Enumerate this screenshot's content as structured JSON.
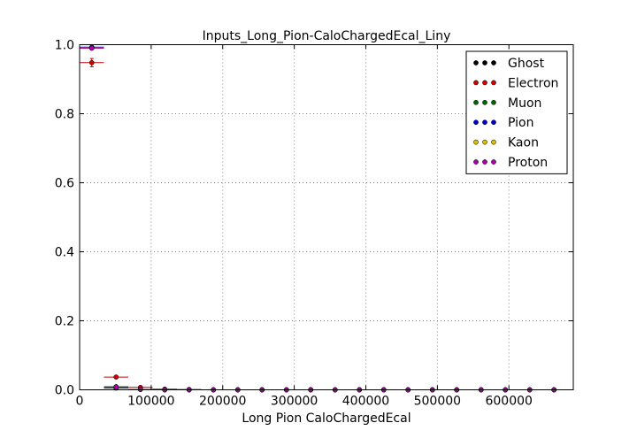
{
  "chart_data": {
    "type": "scatter",
    "title": "Inputs_Long_Pion-CaloChargedEcal_Liny",
    "xlabel": "Long Pion CaloChargedEcal",
    "ylabel": "",
    "xlim": [
      0,
      690000
    ],
    "ylim": [
      0.0,
      1.0
    ],
    "xticks": [
      0,
      100000,
      200000,
      300000,
      400000,
      500000,
      600000
    ],
    "xtick_labels": [
      "0",
      "100000",
      "200000",
      "300000",
      "400000",
      "500000",
      "600000"
    ],
    "yticks": [
      0.0,
      0.2,
      0.4,
      0.6,
      0.8,
      1.0
    ],
    "ytick_labels": [
      "0.0",
      "0.2",
      "0.4",
      "0.6",
      "0.8",
      "1.0"
    ],
    "grid": true,
    "legend_position": "top-right",
    "bin_half_width": 17000,
    "x": [
      17000,
      51000,
      85000,
      119000,
      153000,
      187000,
      221000,
      255000,
      289000,
      323000,
      357000,
      391000,
      425000,
      459000,
      493000,
      527000,
      561000,
      595000,
      629000,
      663000
    ],
    "series": [
      {
        "name": "Ghost",
        "color": "#000000",
        "values": [
          0.992,
          0.005,
          0.001,
          0,
          0,
          0,
          0,
          0,
          0,
          0,
          0,
          0,
          0,
          0,
          0,
          0,
          0,
          0,
          0,
          0
        ],
        "errors": [
          0.003,
          0,
          0,
          0,
          0,
          0,
          0,
          0,
          0,
          0,
          0,
          0,
          0,
          0,
          0,
          0,
          0,
          0,
          0,
          0
        ]
      },
      {
        "name": "Electron",
        "color": "#cc0000",
        "values": [
          0.948,
          0.037,
          0.007,
          0.002,
          0.001,
          0,
          0,
          0,
          0,
          0,
          0,
          0,
          0,
          0,
          0,
          0,
          0,
          0,
          0,
          0
        ],
        "errors": [
          0.012,
          0.004,
          0.002,
          0.001,
          0,
          0,
          0,
          0,
          0,
          0,
          0,
          0,
          0,
          0,
          0,
          0,
          0,
          0,
          0,
          0
        ]
      },
      {
        "name": "Muon",
        "color": "#006600",
        "values": [
          0.99,
          0.009,
          0.001,
          0,
          0,
          0,
          0,
          0,
          0,
          0,
          0,
          0,
          0,
          0,
          0,
          0,
          0,
          0,
          0,
          0
        ],
        "errors": [
          0.003,
          0,
          0,
          0,
          0,
          0,
          0,
          0,
          0,
          0,
          0,
          0,
          0,
          0,
          0,
          0,
          0,
          0,
          0,
          0
        ]
      },
      {
        "name": "Pion",
        "color": "#0000cc",
        "values": [
          0.993,
          0.006,
          0.001,
          0,
          0,
          0,
          0,
          0,
          0,
          0,
          0,
          0,
          0,
          0,
          0,
          0,
          0,
          0,
          0,
          0
        ],
        "errors": [
          0.002,
          0,
          0,
          0,
          0,
          0,
          0,
          0,
          0,
          0,
          0,
          0,
          0,
          0,
          0,
          0,
          0,
          0,
          0,
          0
        ]
      },
      {
        "name": "Kaon",
        "color": "#ddbb00",
        "values": [
          0.991,
          0.007,
          0.001,
          0,
          0,
          0,
          0,
          0,
          0,
          0,
          0,
          0,
          0,
          0,
          0,
          0,
          0,
          0,
          0,
          0
        ],
        "errors": [
          0.002,
          0,
          0,
          0,
          0,
          0,
          0,
          0,
          0,
          0,
          0,
          0,
          0,
          0,
          0,
          0,
          0,
          0,
          0,
          0
        ]
      },
      {
        "name": "Proton",
        "color": "#aa00aa",
        "values": [
          0.99,
          0.008,
          0.001,
          0,
          0,
          0,
          0,
          0,
          0,
          0,
          0,
          0,
          0,
          0,
          0,
          0,
          0,
          0,
          0,
          0
        ],
        "errors": [
          0.003,
          0,
          0,
          0,
          0,
          0,
          0,
          0,
          0,
          0,
          0,
          0,
          0,
          0,
          0,
          0,
          0,
          0,
          0,
          0
        ]
      }
    ]
  }
}
